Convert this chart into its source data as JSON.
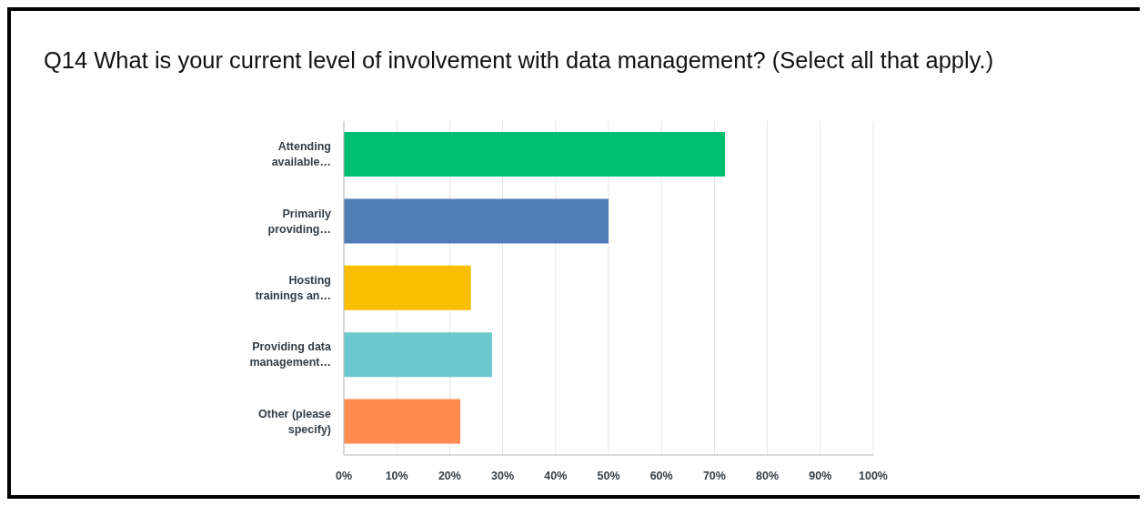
{
  "chart_data": {
    "type": "bar",
    "orientation": "horizontal",
    "title": "Q14 What is your current level of involvement with data management? (Select all that apply.)",
    "categories": [
      "Attending available…",
      "Primarily providing…",
      "Hosting trainings an…",
      "Providing data management…",
      "Other (please specify)"
    ],
    "values": [
      72,
      50,
      24,
      28,
      22
    ],
    "colors": [
      "#00bf6f",
      "#507cb6",
      "#f9be00",
      "#6bc8cd",
      "#ff8b4f"
    ],
    "xlim": [
      0,
      100
    ],
    "xticks": [
      {
        "value": 0,
        "label": "0%"
      },
      {
        "value": 10,
        "label": "10%"
      },
      {
        "value": 20,
        "label": "20%"
      },
      {
        "value": 30,
        "label": "30%"
      },
      {
        "value": 40,
        "label": "40%"
      },
      {
        "value": 50,
        "label": "50%"
      },
      {
        "value": 60,
        "label": "60%"
      },
      {
        "value": 70,
        "label": "70%"
      },
      {
        "value": 80,
        "label": "80%"
      },
      {
        "value": 90,
        "label": "90%"
      },
      {
        "value": 100,
        "label": "100%"
      }
    ],
    "grid": "x"
  }
}
